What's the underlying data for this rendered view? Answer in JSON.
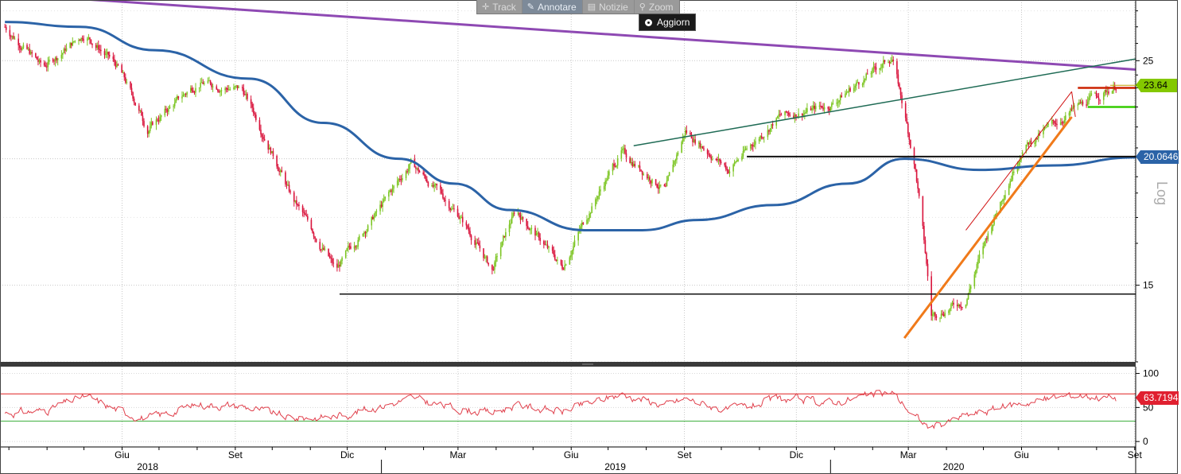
{
  "toolbar": {
    "track": "Track",
    "annotate": "Annotare",
    "news": "Notizie",
    "zoom": "Zoom",
    "refresh": "Aggiorn"
  },
  "colors": {
    "up": "#7cc522",
    "down": "#d9143c",
    "ma": "#2b63a7",
    "long_trend": "#8e49b3",
    "channel_top": "#1f6b55",
    "support_orange": "#f07a1a",
    "rsi": "#e0404c",
    "rsi_upper": "#e02020",
    "rsi_lower": "#40b040",
    "last_tag": "#84c800",
    "ma_tag": "#2b63a7",
    "rsi_tag": "#e02030"
  },
  "chart_data": [
    {
      "type": "candlestick",
      "scale": "log",
      "scale_label": "Log",
      "yticks": [
        25,
        15
      ],
      "ylim": [
        12.6,
        28.7
      ],
      "x_month_labels": [
        "Giu",
        "Set",
        "Dic",
        "Mar",
        "Giu",
        "Set",
        "Dic",
        "Mar",
        "Giu",
        "Set"
      ],
      "x_year_labels": [
        "2018",
        "2019",
        "2020"
      ],
      "last_price": "23.64",
      "ma_value": "20.0646",
      "price_path": [
        [
          "2018-03-01",
          27.0
        ],
        [
          "2018-04-01",
          24.6
        ],
        [
          "2018-05-05",
          26.6
        ],
        [
          "2018-06-01",
          24.6
        ],
        [
          "2018-06-25",
          21.4
        ],
        [
          "2018-08-05",
          23.8
        ],
        [
          "2018-09-10",
          23.4
        ],
        [
          "2018-10-20",
          18.3
        ],
        [
          "2018-11-25",
          15.5
        ],
        [
          "2018-12-30",
          17.8
        ],
        [
          "2019-01-25",
          19.8
        ],
        [
          "2019-03-05",
          17.6
        ],
        [
          "2019-04-01",
          15.5
        ],
        [
          "2019-04-20",
          17.8
        ],
        [
          "2019-05-28",
          15.6
        ],
        [
          "2019-07-15",
          20.3
        ],
        [
          "2019-08-20",
          18.6
        ],
        [
          "2019-09-05",
          21.3
        ],
        [
          "2019-10-10",
          19.5
        ],
        [
          "2019-11-20",
          22.0
        ],
        [
          "2020-01-01",
          22.6
        ],
        [
          "2020-02-20",
          25.2
        ],
        [
          "2020-03-10",
          19.5
        ],
        [
          "2020-03-23",
          14.0
        ],
        [
          "2020-04-20",
          14.5
        ],
        [
          "2020-06-05",
          20.5
        ],
        [
          "2020-07-20",
          22.5
        ],
        [
          "2020-08-20",
          23.64
        ]
      ],
      "moving_average": [
        [
          "2018-03-01",
          27.3
        ],
        [
          "2018-05-01",
          27.0
        ],
        [
          "2018-07-01",
          25.6
        ],
        [
          "2018-09-15",
          24.0
        ],
        [
          "2018-11-15",
          21.7
        ],
        [
          "2019-01-15",
          20.0
        ],
        [
          "2019-03-01",
          18.9
        ],
        [
          "2019-04-15",
          17.8
        ],
        [
          "2019-06-15",
          17.0
        ],
        [
          "2019-08-01",
          17.0
        ],
        [
          "2019-09-15",
          17.4
        ],
        [
          "2019-11-15",
          18.0
        ],
        [
          "2020-01-15",
          18.9
        ],
        [
          "2020-03-01",
          20.0
        ],
        [
          "2020-05-01",
          19.5
        ],
        [
          "2020-07-01",
          19.7
        ],
        [
          "2020-09-05",
          20.0646
        ]
      ],
      "lines": [
        {
          "name": "long_trend",
          "points": [
            [
              "2018-03-01",
              29.1
            ],
            [
              "2020-09-05",
              24.5
            ]
          ]
        },
        {
          "name": "channel_top",
          "points": [
            [
              "2019-07-25",
              20.6
            ],
            [
              "2020-09-05",
              25.1
            ]
          ]
        },
        {
          "name": "support_low",
          "points": [
            [
              "2018-11-28",
              14.7
            ],
            [
              "2020-09-05",
              14.7
            ]
          ]
        },
        {
          "name": "support_mid",
          "points": [
            [
              "2019-10-25",
              20.1
            ],
            [
              "2020-09-05",
              20.1
            ]
          ]
        },
        {
          "name": "support_orange",
          "points": [
            [
              "2020-03-01",
              13.3
            ],
            [
              "2020-07-15",
              22.0
            ]
          ]
        },
        {
          "name": "resistance_red",
          "points": [
            [
              "2020-07-20",
              23.5
            ],
            [
              "2020-09-05",
              23.5
            ]
          ]
        },
        {
          "name": "support_green",
          "points": [
            [
              "2020-07-28",
              22.5
            ],
            [
              "2020-09-05",
              22.5
            ]
          ]
        }
      ]
    },
    {
      "type": "line",
      "name": "RSI",
      "yticks": [
        100,
        50,
        0
      ],
      "ylim": [
        -8,
        110
      ],
      "upper_band": 70,
      "lower_band": 30,
      "last_value": "63.7194",
      "values": [
        [
          "2018-03-01",
          42
        ],
        [
          "2018-04-01",
          45
        ],
        [
          "2018-05-05",
          66
        ],
        [
          "2018-06-01",
          46
        ],
        [
          "2018-06-25",
          33
        ],
        [
          "2018-08-05",
          55
        ],
        [
          "2018-09-10",
          52
        ],
        [
          "2018-10-20",
          34
        ],
        [
          "2018-11-25",
          37
        ],
        [
          "2018-12-30",
          52
        ],
        [
          "2019-01-25",
          63
        ],
        [
          "2019-03-05",
          48
        ],
        [
          "2019-04-01",
          42
        ],
        [
          "2019-04-20",
          54
        ],
        [
          "2019-05-28",
          44
        ],
        [
          "2019-07-15",
          70
        ],
        [
          "2019-08-20",
          53
        ],
        [
          "2019-09-05",
          63
        ],
        [
          "2019-10-10",
          45
        ],
        [
          "2019-11-20",
          62
        ],
        [
          "2020-01-01",
          58
        ],
        [
          "2020-02-20",
          72
        ],
        [
          "2020-03-10",
          36
        ],
        [
          "2020-03-23",
          20
        ],
        [
          "2020-04-20",
          38
        ],
        [
          "2020-06-05",
          57
        ],
        [
          "2020-07-20",
          69
        ],
        [
          "2020-08-20",
          63.7194
        ]
      ]
    }
  ]
}
